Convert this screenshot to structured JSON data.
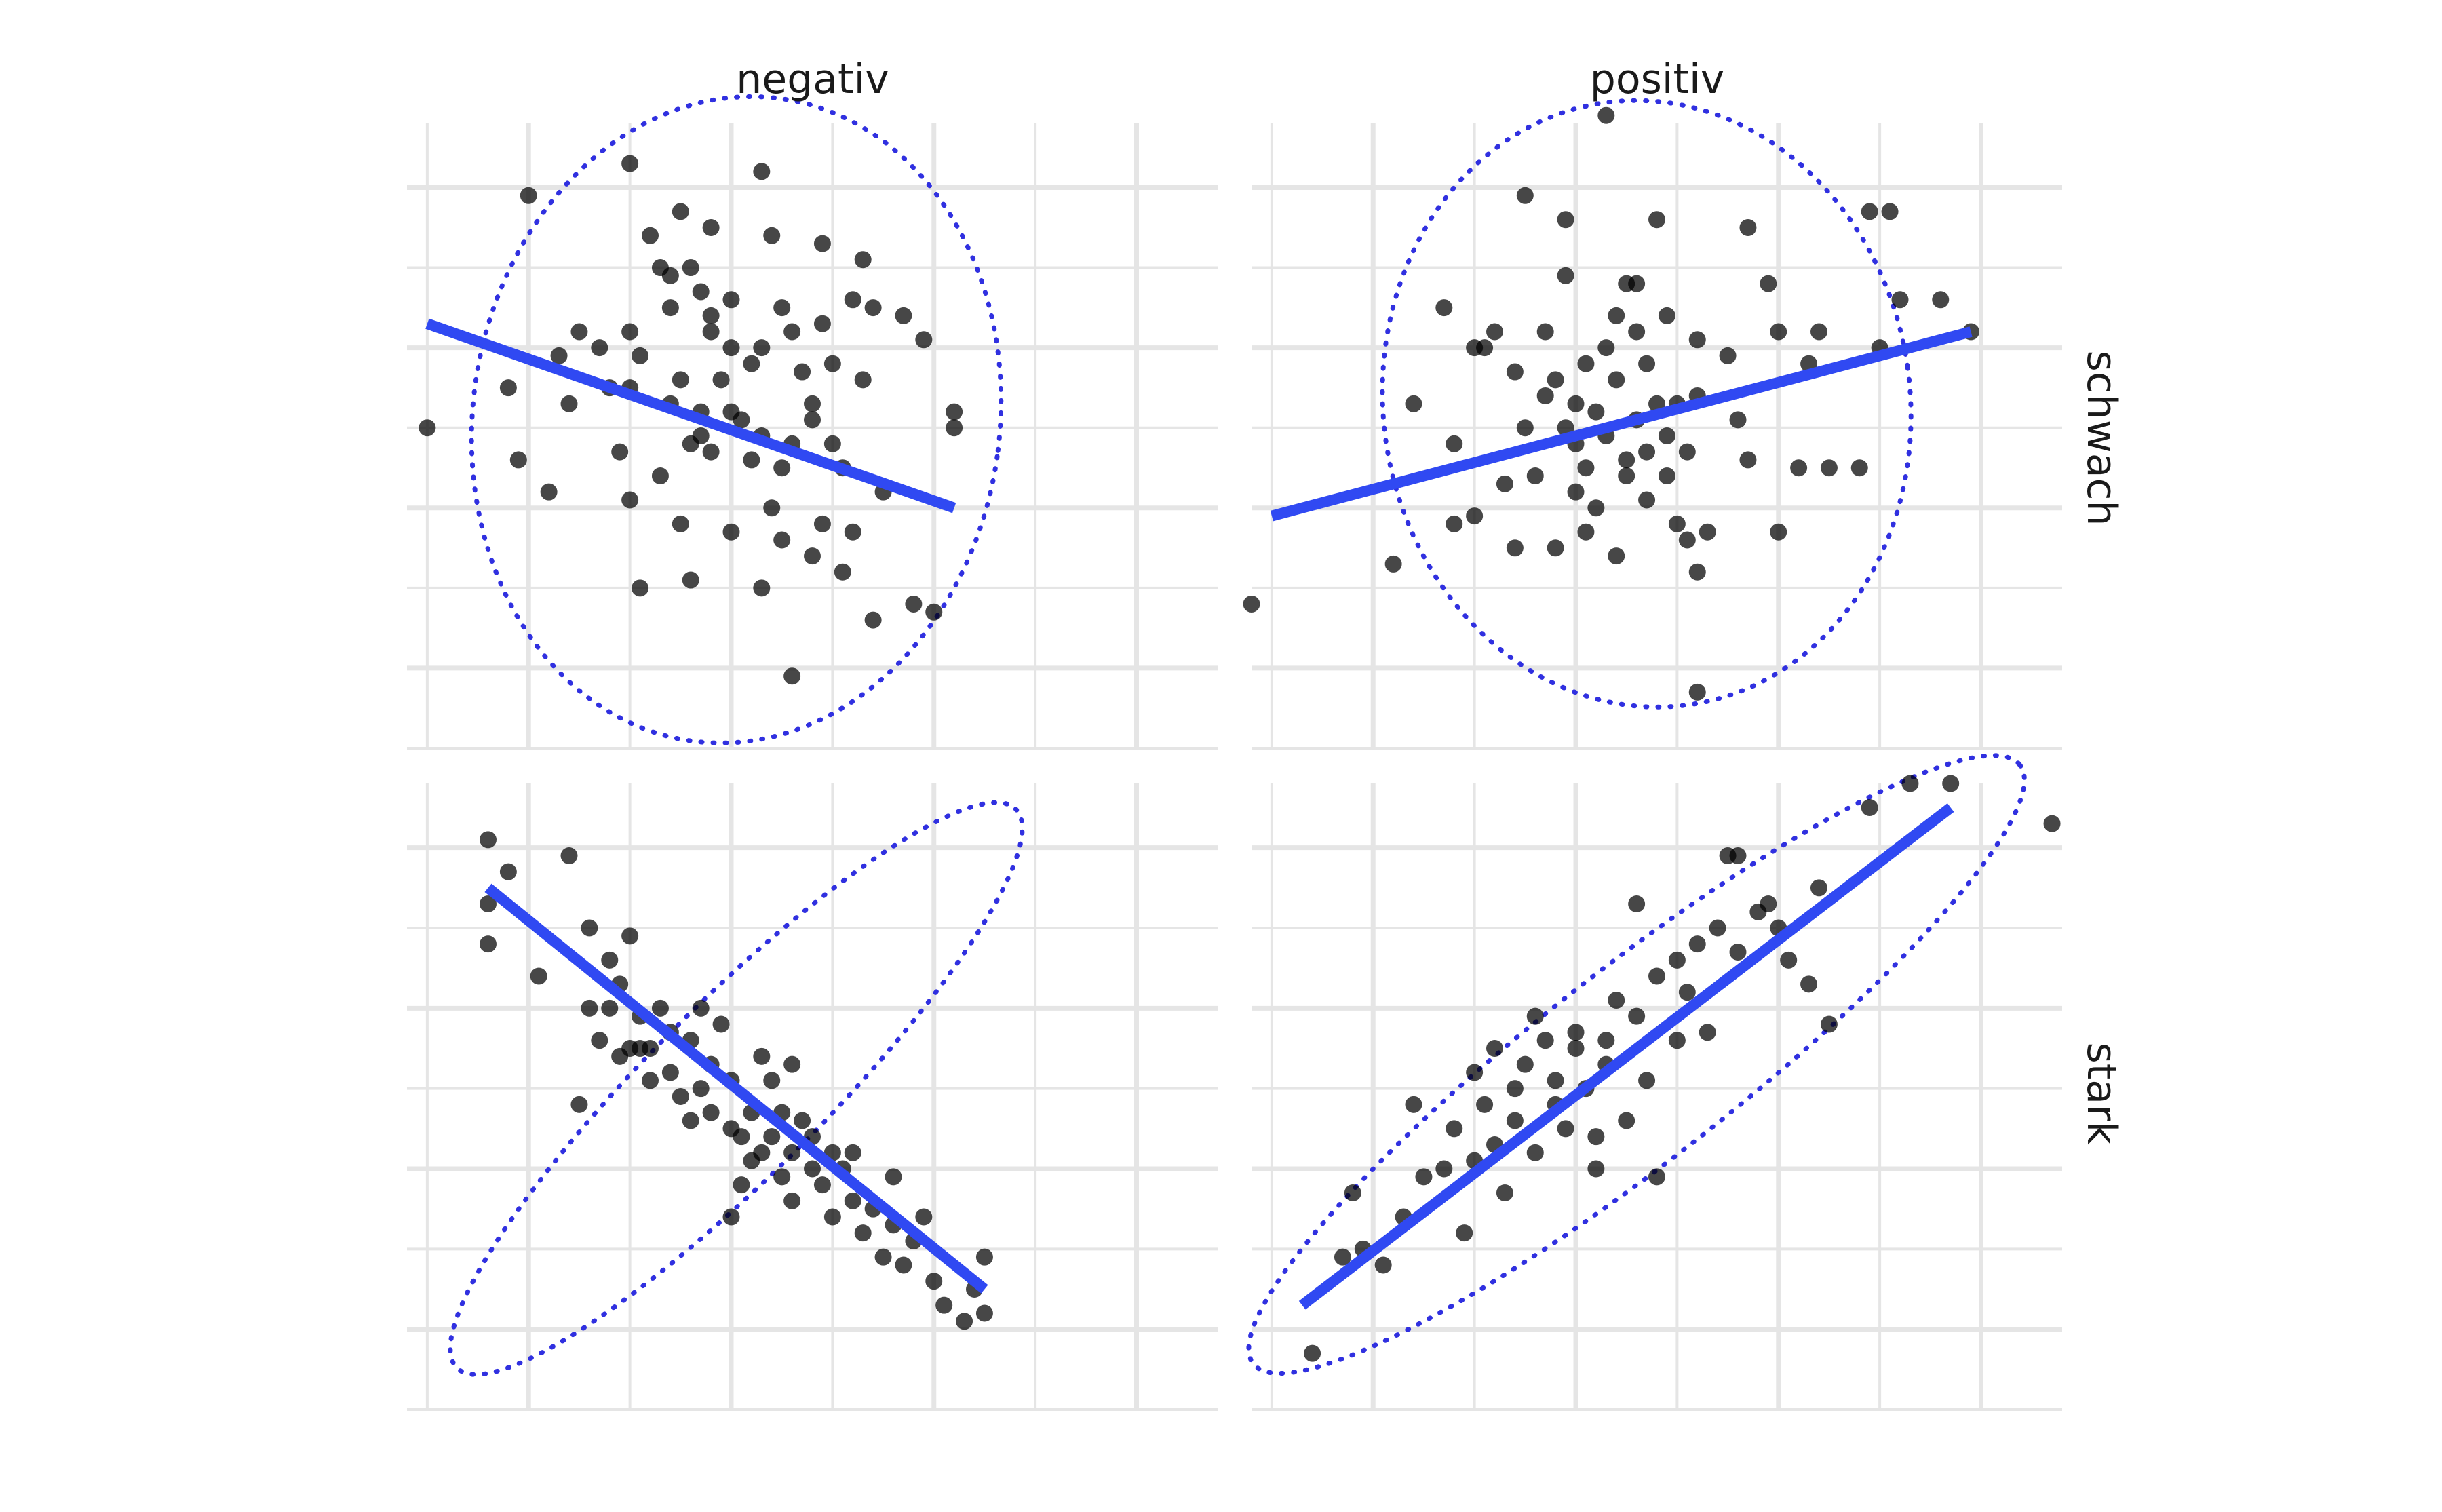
{
  "chart_data": {
    "type": "scatter",
    "column_strips": [
      "negativ",
      "positiv"
    ],
    "row_strips": [
      "schwach",
      "stark"
    ],
    "xlim": [
      -3.2,
      4.8
    ],
    "ylim": [
      -4.0,
      3.8
    ],
    "grid": true,
    "axis_tick_labels_shown": false,
    "colors": {
      "points": "#000000",
      "regression_line": "#3049f2",
      "ellipse": "#3030e0",
      "grid": "#e5e5e5"
    },
    "panels": [
      {
        "column": "negativ",
        "row": "schwach",
        "regression_line": [
          [
            -3.0,
            1.3
          ],
          [
            2.2,
            -1.0
          ]
        ],
        "ellipse": {
          "cx": 0.05,
          "cy": 0.1,
          "rx": 2.6,
          "ry": 3.2,
          "angle_deg": 8
        },
        "points": [
          [
            -3.0,
            0.0
          ],
          [
            -2.0,
            2.9
          ],
          [
            -1.0,
            3.3
          ],
          [
            0.3,
            3.2
          ],
          [
            -0.8,
            2.4
          ],
          [
            -0.2,
            1.2
          ],
          [
            0.5,
            1.5
          ],
          [
            0.0,
            1.0
          ],
          [
            0.2,
            0.8
          ],
          [
            -0.5,
            0.6
          ],
          [
            -1.2,
            0.5
          ],
          [
            -0.6,
            0.3
          ],
          [
            -0.3,
            -0.1
          ],
          [
            0.0,
            0.2
          ],
          [
            0.2,
            -0.4
          ],
          [
            0.5,
            -0.5
          ],
          [
            -0.7,
            -0.6
          ],
          [
            -0.5,
            -1.2
          ],
          [
            -1.6,
            0.3
          ],
          [
            -1.8,
            -0.8
          ],
          [
            -2.1,
            -0.4
          ],
          [
            -2.2,
            0.5
          ],
          [
            0.8,
            0.3
          ],
          [
            1.0,
            -0.2
          ],
          [
            1.3,
            0.6
          ],
          [
            1.5,
            -0.8
          ],
          [
            1.2,
            -1.3
          ],
          [
            0.8,
            -1.6
          ],
          [
            0.4,
            -1.0
          ],
          [
            0.3,
            -2.0
          ],
          [
            -0.4,
            -1.9
          ],
          [
            -0.9,
            -2.0
          ],
          [
            0.6,
            -3.1
          ],
          [
            1.4,
            -2.4
          ],
          [
            1.1,
            -1.8
          ],
          [
            1.8,
            -2.2
          ],
          [
            2.0,
            -2.3
          ],
          [
            2.2,
            0.0
          ],
          [
            2.2,
            0.2
          ],
          [
            1.9,
            1.1
          ],
          [
            1.7,
            1.4
          ],
          [
            1.4,
            1.5
          ],
          [
            0.9,
            1.3
          ],
          [
            0.6,
            1.2
          ],
          [
            0.0,
            1.6
          ],
          [
            -0.3,
            1.7
          ],
          [
            -0.6,
            1.9
          ],
          [
            -0.4,
            2.0
          ],
          [
            -0.7,
            2.0
          ],
          [
            -0.2,
            2.5
          ],
          [
            -0.5,
            2.7
          ],
          [
            -1.0,
            1.2
          ],
          [
            -1.3,
            1.0
          ],
          [
            -0.1,
            0.6
          ],
          [
            0.3,
            -0.1
          ],
          [
            0.7,
            0.7
          ],
          [
            1.1,
            -0.5
          ],
          [
            -0.2,
            -0.3
          ],
          [
            0.1,
            0.1
          ],
          [
            0.6,
            -0.2
          ],
          [
            -0.9,
            0.9
          ],
          [
            -1.0,
            0.5
          ],
          [
            -1.1,
            -0.3
          ],
          [
            -1.0,
            -0.9
          ],
          [
            0.0,
            -1.3
          ],
          [
            0.5,
            -1.4
          ],
          [
            0.9,
            -1.2
          ],
          [
            1.0,
            0.8
          ],
          [
            1.2,
            1.6
          ],
          [
            -0.6,
            1.5
          ],
          [
            -0.2,
            1.4
          ],
          [
            0.4,
            2.4
          ],
          [
            0.3,
            1.0
          ],
          [
            -1.5,
            1.2
          ],
          [
            -1.7,
            0.9
          ],
          [
            0.9,
            2.3
          ],
          [
            1.3,
            2.1
          ],
          [
            -0.3,
            0.2
          ],
          [
            0.8,
            0.1
          ],
          [
            -0.4,
            -0.2
          ]
        ]
      },
      {
        "column": "positiv",
        "row": "schwach",
        "regression_line": [
          [
            -3.0,
            -1.1
          ],
          [
            3.9,
            1.2
          ]
        ],
        "ellipse": {
          "cx": 0.7,
          "cy": 0.3,
          "rx": 2.6,
          "ry": 3.0,
          "angle_deg": -8
        },
        "points": [
          [
            -3.2,
            -2.2
          ],
          [
            -1.8,
            -1.7
          ],
          [
            -1.0,
            1.0
          ],
          [
            -1.6,
            0.3
          ],
          [
            -1.2,
            -0.2
          ],
          [
            -1.0,
            -1.1
          ],
          [
            -0.6,
            -1.5
          ],
          [
            -0.2,
            -1.5
          ],
          [
            0.1,
            -1.3
          ],
          [
            0.4,
            -1.6
          ],
          [
            0.7,
            -0.9
          ],
          [
            1.1,
            -1.4
          ],
          [
            1.3,
            -1.3
          ],
          [
            1.7,
            -0.4
          ],
          [
            2.0,
            -1.3
          ],
          [
            2.3,
            0.8
          ],
          [
            2.5,
            -0.5
          ],
          [
            2.8,
            -0.5
          ],
          [
            3.0,
            1.0
          ],
          [
            3.6,
            1.6
          ],
          [
            3.9,
            1.2
          ],
          [
            3.2,
            1.6
          ],
          [
            2.4,
            1.2
          ],
          [
            2.0,
            1.2
          ],
          [
            1.2,
            1.1
          ],
          [
            0.8,
            0.3
          ],
          [
            0.6,
            0.1
          ],
          [
            0.3,
            -0.1
          ],
          [
            0.0,
            0.3
          ],
          [
            -0.2,
            0.6
          ],
          [
            -0.5,
            0.0
          ],
          [
            0.1,
            -0.5
          ],
          [
            0.0,
            -0.8
          ],
          [
            0.5,
            -0.4
          ],
          [
            0.9,
            -0.6
          ],
          [
            1.0,
            -1.2
          ],
          [
            1.2,
            -1.8
          ],
          [
            -0.1,
            2.6
          ],
          [
            -0.5,
            2.9
          ],
          [
            0.3,
            3.9
          ],
          [
            0.8,
            2.6
          ],
          [
            1.7,
            2.5
          ],
          [
            2.9,
            2.7
          ],
          [
            3.1,
            2.7
          ],
          [
            -0.1,
            1.9
          ],
          [
            0.5,
            1.8
          ],
          [
            0.4,
            1.4
          ],
          [
            0.6,
            1.8
          ],
          [
            0.3,
            1.0
          ],
          [
            0.7,
            0.8
          ],
          [
            -0.3,
            0.4
          ],
          [
            0.1,
            0.8
          ],
          [
            0.9,
            -0.1
          ],
          [
            1.2,
            0.4
          ],
          [
            1.5,
            0.9
          ],
          [
            1.1,
            -0.3
          ],
          [
            0.5,
            -0.6
          ],
          [
            -0.4,
            -0.6
          ],
          [
            -0.7,
            -0.7
          ],
          [
            -1.3,
            1.5
          ],
          [
            -0.8,
            1.2
          ],
          [
            -0.1,
            0.0
          ],
          [
            0.2,
            0.2
          ],
          [
            0.4,
            0.6
          ],
          [
            1.0,
            0.3
          ],
          [
            0.6,
            1.2
          ],
          [
            -0.3,
            1.2
          ],
          [
            -0.6,
            0.7
          ],
          [
            0.0,
            -0.2
          ],
          [
            0.2,
            -1.0
          ],
          [
            0.9,
            1.4
          ],
          [
            1.2,
            -3.3
          ],
          [
            -1.2,
            -1.2
          ],
          [
            0.7,
            -0.3
          ],
          [
            1.6,
            0.1
          ],
          [
            2.2,
            -0.5
          ],
          [
            1.9,
            1.8
          ],
          [
            -0.9,
            1.0
          ]
        ]
      },
      {
        "column": "negativ",
        "row": "stark",
        "regression_line": [
          [
            -2.4,
            2.5
          ],
          [
            2.5,
            -2.5
          ]
        ],
        "ellipse": {
          "cx": 0.05,
          "cy": 0.0,
          "rx": 3.9,
          "ry": 0.85,
          "angle_deg": -45
        },
        "points": [
          [
            -2.4,
            3.1
          ],
          [
            -2.2,
            2.7
          ],
          [
            -2.4,
            2.3
          ],
          [
            -2.4,
            1.8
          ],
          [
            -1.9,
            1.4
          ],
          [
            -1.6,
            2.9
          ],
          [
            -1.4,
            2.0
          ],
          [
            -1.2,
            1.6
          ],
          [
            -1.1,
            1.3
          ],
          [
            -1.0,
            1.9
          ],
          [
            -1.4,
            1.0
          ],
          [
            -1.3,
            0.6
          ],
          [
            -1.1,
            0.4
          ],
          [
            -0.9,
            0.9
          ],
          [
            -0.8,
            0.5
          ],
          [
            -0.6,
            0.2
          ],
          [
            -0.4,
            0.6
          ],
          [
            -0.3,
            0.0
          ],
          [
            -0.2,
            -0.3
          ],
          [
            0.0,
            -0.5
          ],
          [
            0.2,
            -0.3
          ],
          [
            0.4,
            -0.6
          ],
          [
            0.6,
            -0.8
          ],
          [
            0.7,
            -0.4
          ],
          [
            0.9,
            -1.2
          ],
          [
            1.0,
            -1.6
          ],
          [
            1.2,
            -1.4
          ],
          [
            1.3,
            -1.8
          ],
          [
            1.5,
            -2.1
          ],
          [
            1.7,
            -2.2
          ],
          [
            2.0,
            -2.4
          ],
          [
            2.1,
            -2.7
          ],
          [
            2.3,
            -2.9
          ],
          [
            2.4,
            -2.5
          ],
          [
            2.5,
            -2.1
          ],
          [
            2.5,
            -2.8
          ],
          [
            1.8,
            -1.9
          ],
          [
            1.6,
            -1.1
          ],
          [
            1.2,
            -0.8
          ],
          [
            0.6,
            0.3
          ],
          [
            0.4,
            0.1
          ],
          [
            0.3,
            -0.8
          ],
          [
            0.1,
            -1.2
          ],
          [
            0.0,
            -1.6
          ],
          [
            -0.5,
            -0.1
          ],
          [
            -0.8,
            0.1
          ],
          [
            -1.0,
            0.5
          ],
          [
            -1.5,
            -0.2
          ],
          [
            -0.7,
            1.0
          ],
          [
            -0.3,
            1.0
          ],
          [
            0.6,
            -1.4
          ],
          [
            0.8,
            -1.0
          ],
          [
            1.1,
            -1.0
          ],
          [
            -0.2,
            0.3
          ],
          [
            0.0,
            0.1
          ],
          [
            0.2,
            -0.9
          ],
          [
            0.5,
            -1.1
          ],
          [
            -0.6,
            0.7
          ],
          [
            -1.2,
            1.0
          ],
          [
            1.4,
            -1.5
          ],
          [
            1.9,
            -1.6
          ],
          [
            -0.1,
            0.8
          ],
          [
            0.3,
            0.4
          ],
          [
            -0.4,
            -0.4
          ],
          [
            0.8,
            -0.6
          ],
          [
            1.0,
            -0.8
          ],
          [
            0.5,
            -0.3
          ],
          [
            -0.9,
            0.5
          ],
          [
            0.1,
            -0.6
          ],
          [
            1.6,
            -1.7
          ]
        ]
      },
      {
        "column": "positiv",
        "row": "stark",
        "regression_line": [
          [
            -2.7,
            -2.7
          ],
          [
            3.7,
            3.5
          ]
        ],
        "ellipse": {
          "cx": 0.6,
          "cy": 0.3,
          "rx": 4.8,
          "ry": 0.95,
          "angle_deg": -38
        },
        "points": [
          [
            -2.6,
            -3.3
          ],
          [
            -2.3,
            -2.1
          ],
          [
            -2.1,
            -2.0
          ],
          [
            -2.2,
            -1.3
          ],
          [
            -1.9,
            -2.2
          ],
          [
            -1.7,
            -1.6
          ],
          [
            -1.5,
            -1.1
          ],
          [
            -1.6,
            -0.2
          ],
          [
            -1.2,
            -0.5
          ],
          [
            -1.0,
            0.2
          ],
          [
            -1.0,
            -0.9
          ],
          [
            -0.8,
            -0.7
          ],
          [
            -0.6,
            0.0
          ],
          [
            -0.5,
            0.3
          ],
          [
            -0.3,
            0.6
          ],
          [
            -0.2,
            0.1
          ],
          [
            0.0,
            0.5
          ],
          [
            0.0,
            0.7
          ],
          [
            0.1,
            0.0
          ],
          [
            0.3,
            0.6
          ],
          [
            0.4,
            1.1
          ],
          [
            0.6,
            0.9
          ],
          [
            0.8,
            1.4
          ],
          [
            1.0,
            1.6
          ],
          [
            1.2,
            1.8
          ],
          [
            1.4,
            2.0
          ],
          [
            1.6,
            1.7
          ],
          [
            1.8,
            2.2
          ],
          [
            2.0,
            2.0
          ],
          [
            2.1,
            1.6
          ],
          [
            2.3,
            1.3
          ],
          [
            2.5,
            0.8
          ],
          [
            1.3,
            0.7
          ],
          [
            0.7,
            0.1
          ],
          [
            0.5,
            -0.4
          ],
          [
            0.2,
            -0.6
          ],
          [
            -0.4,
            -0.8
          ],
          [
            -0.7,
            -1.3
          ],
          [
            -1.1,
            -1.8
          ],
          [
            -1.3,
            -1.0
          ],
          [
            -0.9,
            -0.2
          ],
          [
            -0.6,
            -0.4
          ],
          [
            -0.2,
            -0.2
          ],
          [
            0.6,
            2.3
          ],
          [
            0.2,
            -1.0
          ],
          [
            0.8,
            -1.1
          ],
          [
            1.5,
            2.9
          ],
          [
            1.9,
            2.3
          ],
          [
            2.9,
            3.5
          ],
          [
            3.3,
            3.8
          ],
          [
            3.7,
            3.8
          ],
          [
            4.7,
            3.3
          ],
          [
            -0.4,
            0.9
          ],
          [
            1.0,
            0.6
          ],
          [
            0.3,
            0.3
          ],
          [
            -0.1,
            -0.5
          ],
          [
            1.6,
            2.9
          ],
          [
            2.4,
            2.5
          ],
          [
            1.1,
            1.2
          ],
          [
            -0.8,
            0.5
          ]
        ]
      }
    ]
  }
}
